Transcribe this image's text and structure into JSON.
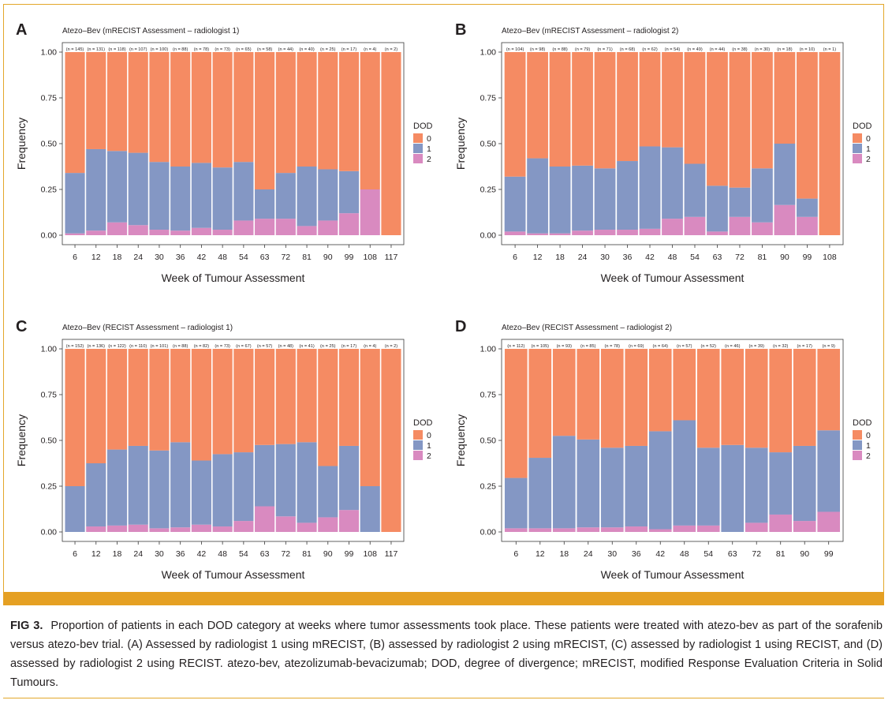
{
  "legend_title": "DOD",
  "legend_labels": [
    "0",
    "1",
    "2"
  ],
  "colors": {
    "dod0": "#f58b63",
    "dod1": "#8497c4",
    "dod2": "#d98ac0",
    "gold": "#e5a023"
  },
  "caption": {
    "label": "FIG 3.",
    "text": "Proportion of patients in each DOD category at weeks where tumor assessments took place. These patients were treated with atezo-bev as part of the sorafenib versus atezo-bev trial. (A) Assessed by radiologist 1 using mRECIST, (B) assessed by radiologist 2 using mRECIST, (C) assessed by radiologist 1 using RECIST, and (D) assessed by radiologist 2 using RECIST. atezo-bev, atezolizumab-bevacizumab; DOD, degree of divergence; mRECIST, modified Response Evaluation Criteria in Solid Tumours."
  },
  "chart_data": [
    {
      "type": "bar",
      "stacked": true,
      "panel": "A",
      "title": "Atezo–Bev (mRECIST Assessment – radiologist 1)",
      "xlabel": "Week of Tumour Assessment",
      "ylabel": "Frequency",
      "ylim": [
        0,
        1
      ],
      "yticks": [
        "0.00",
        "0.25",
        "0.50",
        "0.75",
        "1.00"
      ],
      "categories": [
        "6",
        "12",
        "18",
        "24",
        "30",
        "36",
        "42",
        "48",
        "54",
        "63",
        "72",
        "81",
        "90",
        "99",
        "108",
        "117"
      ],
      "n_labels": [
        "(n = 145)",
        "(n = 131)",
        "(n = 118)",
        "(n = 107)",
        "(n = 100)",
        "(n = 88)",
        "(n = 78)",
        "(n = 73)",
        "(n = 65)",
        "(n = 58)",
        "(n = 44)",
        "(n = 40)",
        "(n = 25)",
        "(n = 17)",
        "(n = 4)",
        "(n = 2)"
      ],
      "series": [
        {
          "name": "2",
          "values": [
            0.01,
            0.025,
            0.07,
            0.055,
            0.03,
            0.025,
            0.04,
            0.03,
            0.08,
            0.09,
            0.09,
            0.05,
            0.08,
            0.12,
            0.25,
            0
          ]
        },
        {
          "name": "1",
          "values": [
            0.33,
            0.445,
            0.39,
            0.395,
            0.37,
            0.35,
            0.355,
            0.34,
            0.32,
            0.16,
            0.25,
            0.325,
            0.28,
            0.23,
            0,
            0
          ]
        },
        {
          "name": "0",
          "values": [
            0.66,
            0.53,
            0.54,
            0.55,
            0.6,
            0.625,
            0.605,
            0.63,
            0.6,
            0.75,
            0.66,
            0.625,
            0.64,
            0.65,
            0.75,
            1.0
          ]
        }
      ]
    },
    {
      "type": "bar",
      "stacked": true,
      "panel": "B",
      "title": "Atezo–Bev (mRECIST Assessment – radiologist 2)",
      "xlabel": "Week of Tumour Assessment",
      "ylabel": "Frequency",
      "ylim": [
        0,
        1
      ],
      "yticks": [
        "0.00",
        "0.25",
        "0.50",
        "0.75",
        "1.00"
      ],
      "categories": [
        "6",
        "12",
        "18",
        "24",
        "30",
        "36",
        "42",
        "48",
        "54",
        "63",
        "72",
        "81",
        "90",
        "99",
        "108"
      ],
      "n_labels": [
        "(n = 104)",
        "(n = 98)",
        "(n = 88)",
        "(n = 79)",
        "(n = 71)",
        "(n = 68)",
        "(n = 62)",
        "(n = 54)",
        "(n = 49)",
        "(n = 44)",
        "(n = 38)",
        "(n = 30)",
        "(n = 18)",
        "(n = 10)",
        "(n = 1)"
      ],
      "series": [
        {
          "name": "2",
          "values": [
            0.02,
            0.01,
            0.01,
            0.025,
            0.03,
            0.03,
            0.035,
            0.09,
            0.1,
            0.02,
            0.1,
            0.07,
            0.165,
            0.1,
            0
          ]
        },
        {
          "name": "1",
          "values": [
            0.3,
            0.41,
            0.365,
            0.355,
            0.335,
            0.375,
            0.45,
            0.39,
            0.29,
            0.25,
            0.16,
            0.295,
            0.335,
            0.1,
            0
          ]
        },
        {
          "name": "0",
          "values": [
            0.68,
            0.58,
            0.625,
            0.62,
            0.635,
            0.595,
            0.515,
            0.52,
            0.61,
            0.73,
            0.74,
            0.635,
            0.5,
            0.8,
            1.0
          ]
        }
      ]
    },
    {
      "type": "bar",
      "stacked": true,
      "panel": "C",
      "title": "Atezo–Bev (RECIST Assessment – radiologist 1)",
      "xlabel": "Week of Tumour Assessment",
      "ylabel": "Frequency",
      "ylim": [
        0,
        1
      ],
      "yticks": [
        "0.00",
        "0.25",
        "0.50",
        "0.75",
        "1.00"
      ],
      "categories": [
        "6",
        "12",
        "18",
        "24",
        "30",
        "36",
        "42",
        "48",
        "54",
        "63",
        "72",
        "81",
        "90",
        "99",
        "108",
        "117"
      ],
      "n_labels": [
        "(n = 152)",
        "(n = 136)",
        "(n = 122)",
        "(n = 110)",
        "(n = 101)",
        "(n = 88)",
        "(n = 82)",
        "(n = 73)",
        "(n = 67)",
        "(n = 57)",
        "(n = 48)",
        "(n = 41)",
        "(n = 25)",
        "(n = 17)",
        "(n = 4)",
        "(n = 2)"
      ],
      "series": [
        {
          "name": "2",
          "values": [
            0,
            0.03,
            0.035,
            0.04,
            0.02,
            0.025,
            0.04,
            0.03,
            0.06,
            0.14,
            0.085,
            0.05,
            0.08,
            0.12,
            0,
            0
          ]
        },
        {
          "name": "1",
          "values": [
            0.25,
            0.345,
            0.415,
            0.43,
            0.425,
            0.465,
            0.35,
            0.395,
            0.375,
            0.335,
            0.395,
            0.44,
            0.28,
            0.35,
            0.25,
            0
          ]
        },
        {
          "name": "0",
          "values": [
            0.75,
            0.625,
            0.55,
            0.53,
            0.555,
            0.51,
            0.61,
            0.575,
            0.565,
            0.525,
            0.52,
            0.51,
            0.64,
            0.53,
            0.75,
            1.0
          ]
        }
      ]
    },
    {
      "type": "bar",
      "stacked": true,
      "panel": "D",
      "title": "Atezo–Bev (RECIST Assessment – radiologist 2)",
      "xlabel": "Week of Tumour Assessment",
      "ylabel": "Frequency",
      "ylim": [
        0,
        1
      ],
      "yticks": [
        "0.00",
        "0.25",
        "0.50",
        "0.75",
        "1.00"
      ],
      "categories": [
        "6",
        "12",
        "18",
        "24",
        "30",
        "36",
        "42",
        "48",
        "54",
        "63",
        "72",
        "81",
        "90",
        "99"
      ],
      "n_labels": [
        "(n = 112)",
        "(n = 105)",
        "(n = 93)",
        "(n = 85)",
        "(n = 78)",
        "(n = 69)",
        "(n = 64)",
        "(n = 57)",
        "(n = 52)",
        "(n = 46)",
        "(n = 39)",
        "(n = 32)",
        "(n = 17)",
        "(n = 9)"
      ],
      "series": [
        {
          "name": "2",
          "values": [
            0.02,
            0.02,
            0.02,
            0.025,
            0.025,
            0.03,
            0.015,
            0.035,
            0.035,
            0,
            0.05,
            0.095,
            0.06,
            0.11
          ]
        },
        {
          "name": "1",
          "values": [
            0.275,
            0.385,
            0.505,
            0.48,
            0.435,
            0.44,
            0.535,
            0.575,
            0.425,
            0.475,
            0.41,
            0.34,
            0.41,
            0.445
          ]
        },
        {
          "name": "0",
          "values": [
            0.705,
            0.595,
            0.475,
            0.495,
            0.54,
            0.53,
            0.45,
            0.39,
            0.54,
            0.525,
            0.54,
            0.565,
            0.53,
            0.445
          ]
        }
      ]
    }
  ]
}
